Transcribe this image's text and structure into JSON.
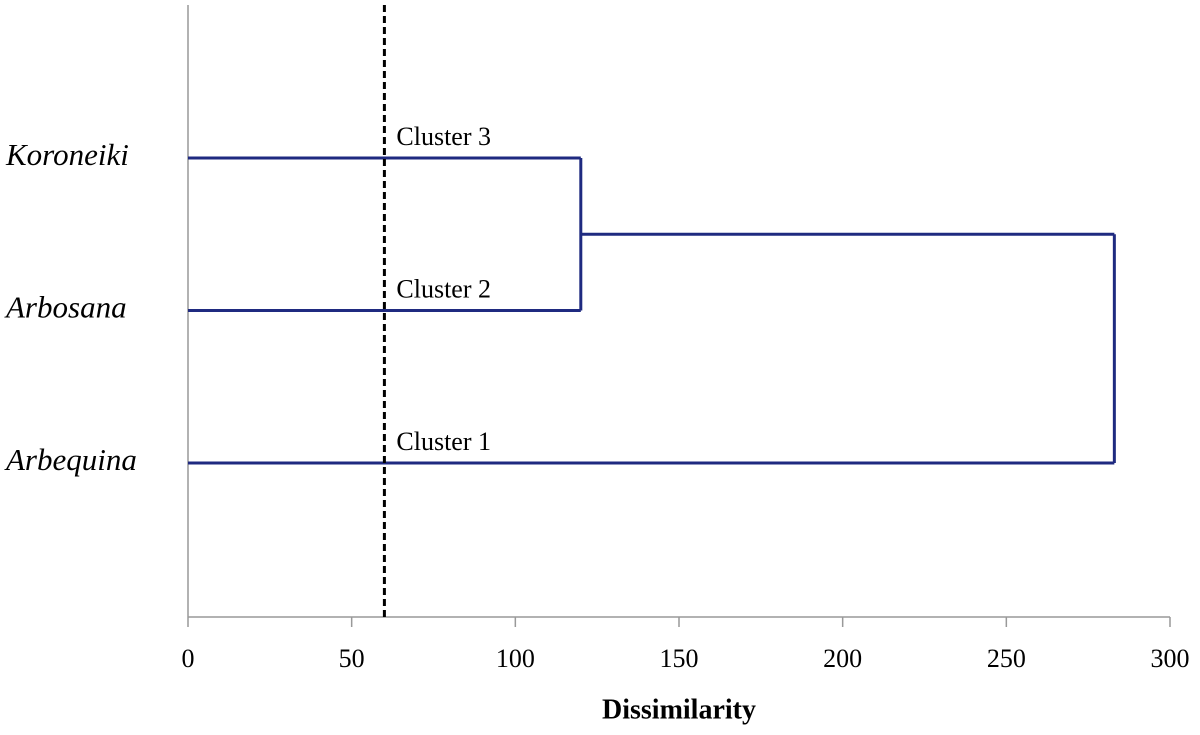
{
  "chart_data": {
    "type": "dendrogram",
    "xlabel": "Dissimilarity",
    "leaves": [
      "Koroneiki",
      "Arbosana",
      "Arbequina"
    ],
    "cluster_labels": [
      "Cluster 3",
      "Cluster 2",
      "Cluster 1"
    ],
    "merges": [
      {
        "items": [
          0,
          1
        ],
        "height": 120
      },
      {
        "items": [
          2,
          3
        ],
        "height": 283
      }
    ],
    "cut": 60,
    "color": "#1f2a80",
    "xlim": [
      0,
      300
    ],
    "xticks": [
      0,
      50,
      100,
      150,
      200,
      250,
      300
    ]
  }
}
